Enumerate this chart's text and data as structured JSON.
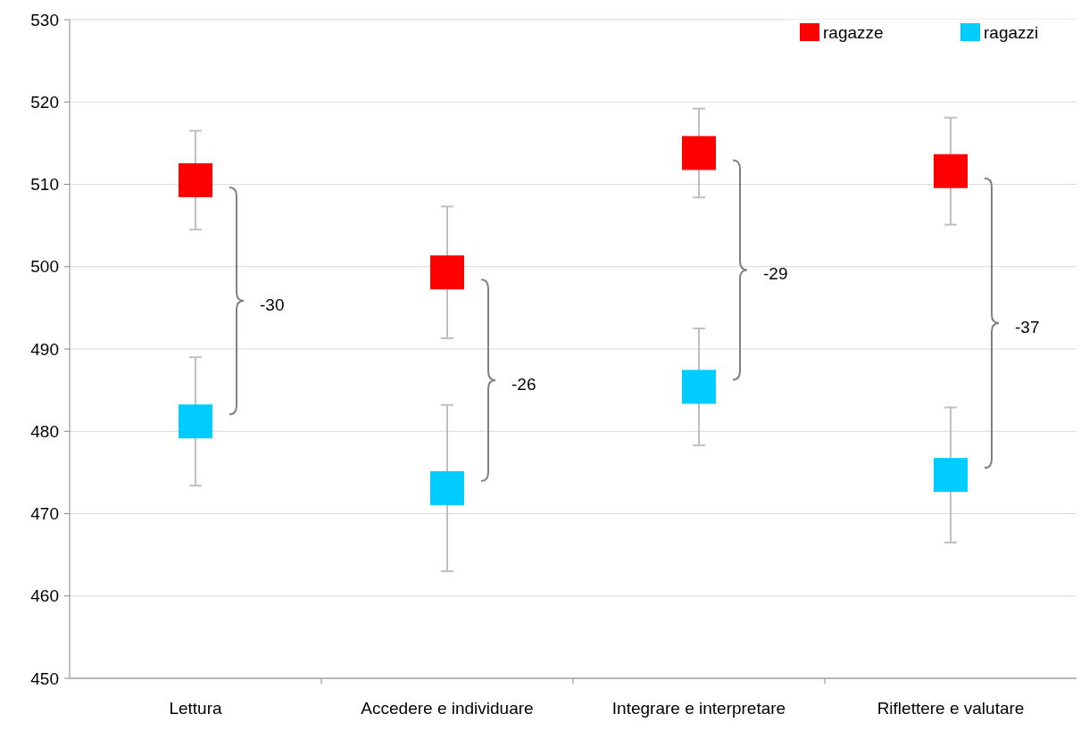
{
  "chart_data": {
    "type": "scatter",
    "categories": [
      "Lettura",
      "Accedere e individuare",
      "Integrare e interpretare",
      "Riflettere e valutare"
    ],
    "series": [
      {
        "name": "ragazze",
        "color": "#ff0000",
        "values": [
          510.5,
          499.3,
          513.8,
          511.6
        ],
        "errors": [
          6,
          8,
          5.4,
          6.5
        ]
      },
      {
        "name": "ragazzi",
        "color": "#00ccff",
        "values": [
          481.2,
          473.1,
          485.4,
          474.7
        ],
        "errors": [
          7.8,
          10.1,
          7.1,
          8.2
        ]
      }
    ],
    "ylim": [
      450,
      530
    ],
    "yticks": [
      450,
      460,
      470,
      480,
      490,
      500,
      510,
      520,
      530
    ],
    "grid": "y",
    "legend": "top right",
    "marker": "square",
    "annotations": [
      "-30",
      "-26",
      "-29",
      "-37"
    ]
  }
}
